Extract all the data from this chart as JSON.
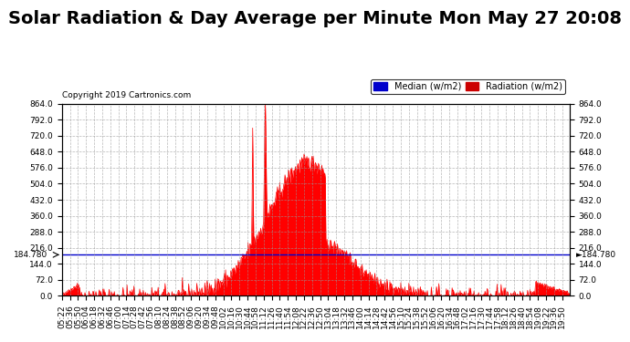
{
  "title": "Solar Radiation & Day Average per Minute Mon May 27 20:08",
  "copyright": "Copyright 2019 Cartronics.com",
  "legend_median_label": "Median (w/m2)",
  "legend_radiation_label": "Radiation (w/m2)",
  "legend_median_color": "#0000cc",
  "legend_radiation_color": "#cc0000",
  "median_line_value": 184.78,
  "median_label": "184.780",
  "y_ticks": [
    0.0,
    72.0,
    144.0,
    216.0,
    288.0,
    360.0,
    432.0,
    504.0,
    576.0,
    648.0,
    720.0,
    792.0,
    864.0
  ],
  "x_start_hour": 5,
  "x_start_min": 22,
  "x_end_hour": 20,
  "x_end_min": 3,
  "background_color": "#ffffff",
  "plot_bg_color": "#ffffff",
  "grid_color": "#999999",
  "fill_color": "#ff0000",
  "title_fontsize": 14,
  "tick_fontsize": 6.5,
  "dpi": 100
}
